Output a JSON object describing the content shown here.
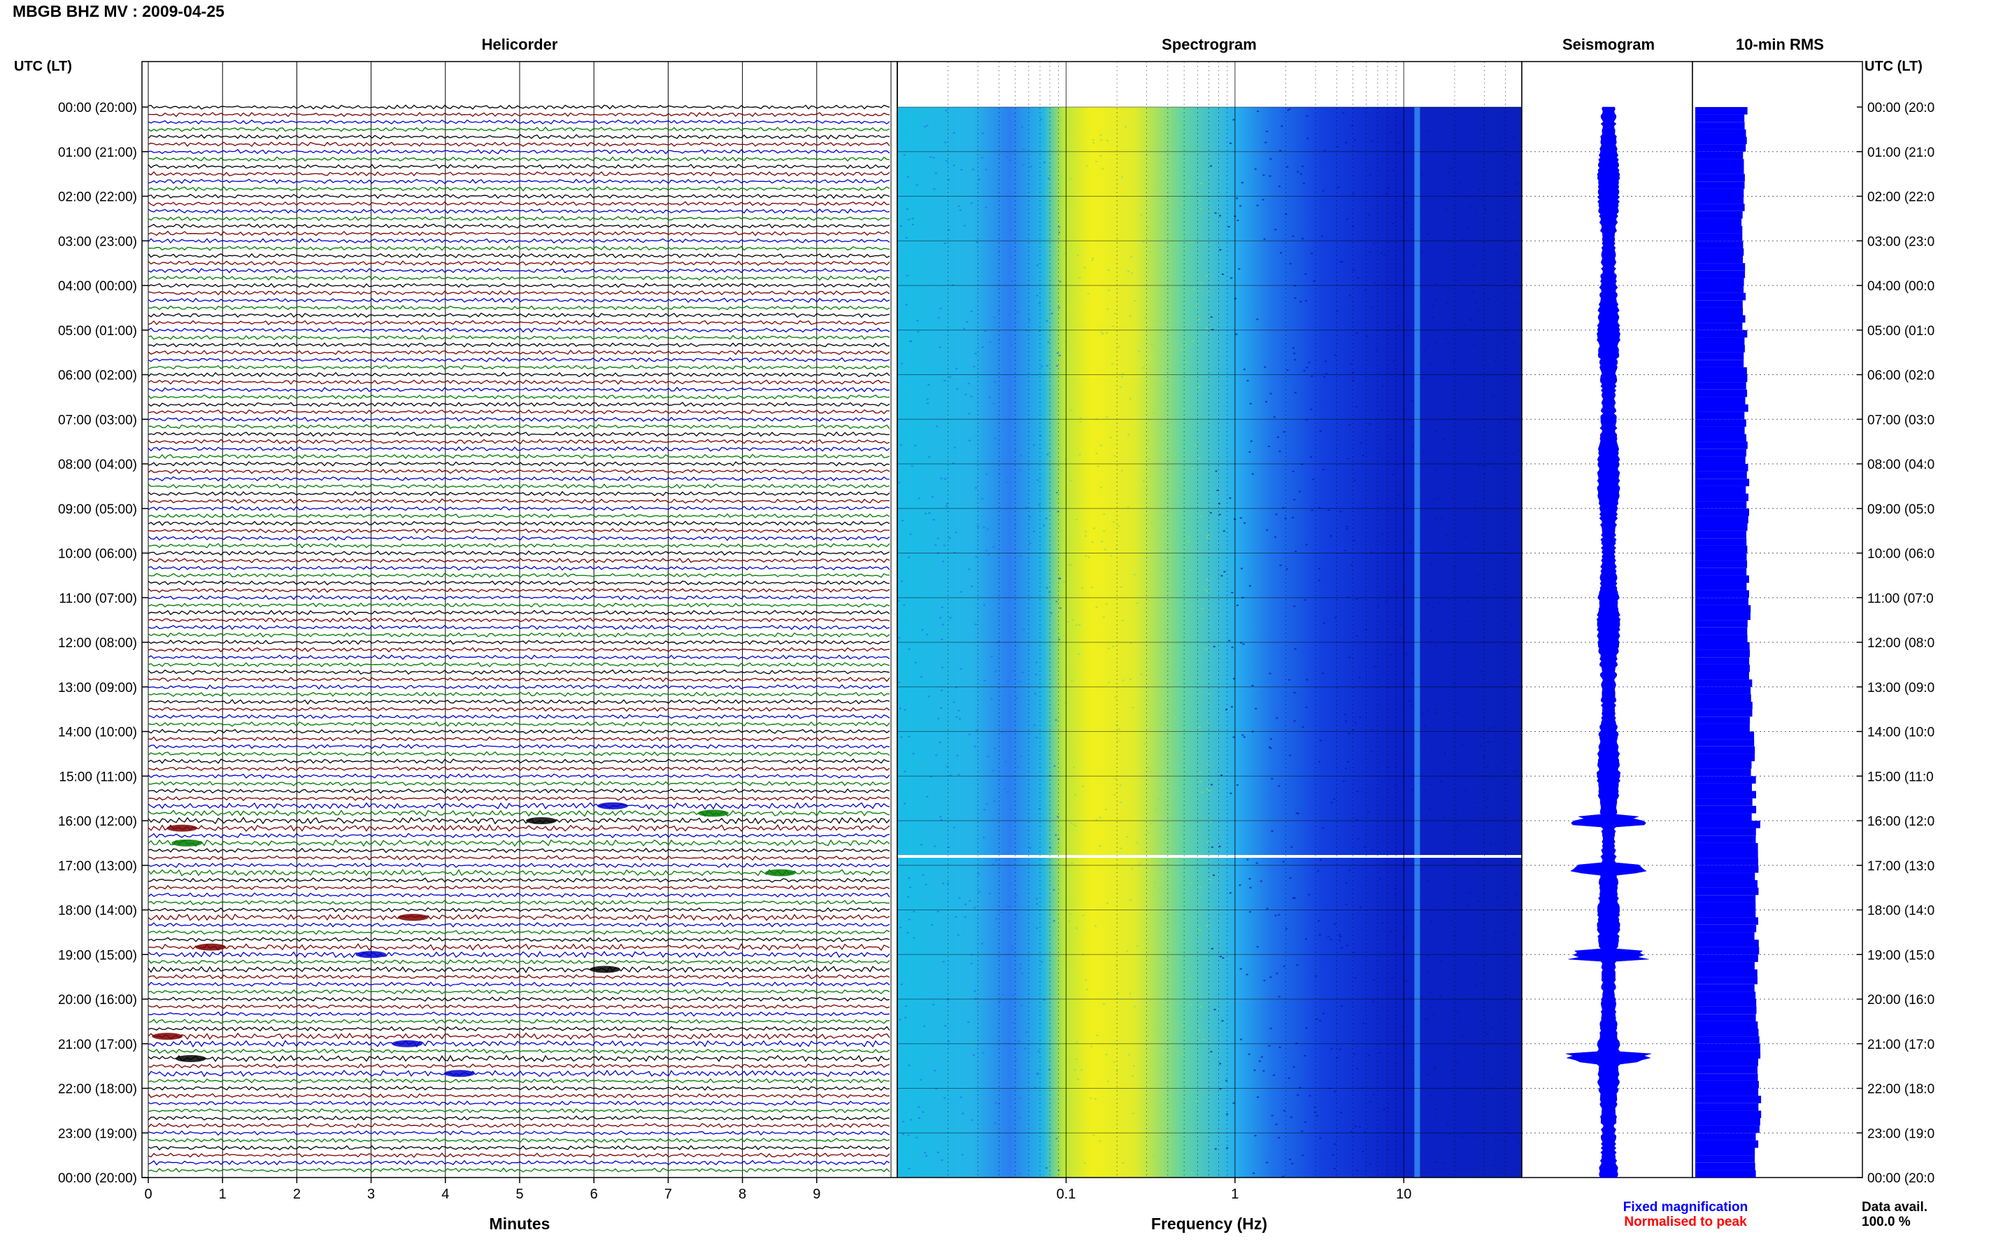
{
  "header": {
    "title": "MBGB BHZ MV : 2009-04-25",
    "utc_label_left": "UTC (LT)",
    "utc_label_right": "UTC (LT)"
  },
  "panels": {
    "helicorder": "Helicorder",
    "spectrogram": "Spectrogram",
    "seismogram": "Seismogram",
    "rms": "10-min RMS"
  },
  "time_labels": [
    "00:00 (20:00)",
    "01:00 (21:00)",
    "02:00 (22:00)",
    "03:00 (23:00)",
    "04:00 (00:00)",
    "05:00 (01:00)",
    "06:00 (02:00)",
    "07:00 (03:00)",
    "08:00 (04:00)",
    "09:00 (05:00)",
    "10:00 (06:00)",
    "11:00 (07:00)",
    "12:00 (08:00)",
    "13:00 (09:00)",
    "14:00 (10:00)",
    "15:00 (11:00)",
    "16:00 (12:00)",
    "17:00 (13:00)",
    "18:00 (14:00)",
    "19:00 (15:00)",
    "20:00 (16:00)",
    "21:00 (17:00)",
    "22:00 (18:00)",
    "23:00 (19:00)",
    "00:00 (20:00)"
  ],
  "time_labels_right": [
    "00:00 (20:0",
    "01:00 (21:0",
    "02:00 (22:0",
    "03:00 (23:0",
    "04:00 (00:0",
    "05:00 (01:0",
    "06:00 (02:0",
    "07:00 (03:0",
    "08:00 (04:0",
    "09:00 (05:0",
    "10:00 (06:0",
    "11:00 (07:0",
    "12:00 (08:0",
    "13:00 (09:0",
    "14:00 (10:0",
    "15:00 (11:0",
    "16:00 (12:0",
    "17:00 (13:0",
    "18:00 (14:0",
    "19:00 (15:0",
    "20:00 (16:0",
    "21:00 (17:0",
    "22:00 (18:0",
    "23:00 (19:0",
    "00:00 (20:0"
  ],
  "footer": {
    "minutes_label": "Minutes",
    "frequency_label": "Frequency (Hz)",
    "legend_fixed": "Fixed magnification",
    "legend_normalised": "Normalised to peak",
    "data_avail_label": "Data avail.",
    "data_avail_value": "100.0 %"
  },
  "colors": {
    "fixed": "#0000ff",
    "normalised": "#ff0000",
    "trace_cycle": [
      "#000000",
      "#7a0000",
      "#0000cc",
      "#007a00"
    ],
    "rms_fill": "#0000ff"
  },
  "chart_data": [
    {
      "type": "line",
      "title": "Helicorder",
      "xlabel": "Minutes",
      "x_ticks": [
        "0",
        "1",
        "2",
        "3",
        "4",
        "5",
        "6",
        "7",
        "8",
        "9"
      ],
      "xlim": [
        0,
        10
      ],
      "ylim_utc_hours": [
        0,
        24
      ],
      "rows": 144,
      "minutes_per_row": 10,
      "event_hours": [
        15.6,
        15.8,
        16.0,
        16.2,
        16.5,
        17.2,
        18.2,
        18.8,
        19.0,
        19.3,
        20.8,
        21.0,
        21.3,
        21.6
      ]
    },
    {
      "type": "heatmap",
      "title": "Spectrogram",
      "xlabel": "Frequency (Hz)",
      "x_scale": "log",
      "xlim": [
        0.01,
        50
      ],
      "x_ticks": [
        "0.1",
        "1",
        "10"
      ],
      "ylim_utc_hours": [
        0,
        24
      ],
      "peak_band_hz": [
        0.2,
        0.5
      ],
      "narrow_line_hz": 12,
      "data_gap_hour": 16.8
    },
    {
      "type": "line",
      "title": "Seismogram",
      "ylim_utc_hours": [
        0,
        24
      ],
      "event_hours": [
        16.0,
        17.1,
        19.0,
        21.3
      ]
    },
    {
      "type": "bar",
      "title": "10-min RMS",
      "ylim_utc_hours": [
        0,
        24
      ],
      "hours": [
        0,
        1,
        2,
        3,
        4,
        5,
        6,
        7,
        8,
        9,
        10,
        11,
        12,
        13,
        14,
        15,
        16,
        17,
        18,
        19,
        20,
        21,
        22,
        23
      ],
      "values": [
        0.72,
        0.7,
        0.68,
        0.69,
        0.7,
        0.72,
        0.73,
        0.73,
        0.75,
        0.76,
        0.76,
        0.77,
        0.79,
        0.8,
        0.82,
        0.84,
        0.9,
        0.88,
        0.88,
        0.88,
        0.9,
        0.9,
        0.91,
        0.88
      ]
    }
  ]
}
